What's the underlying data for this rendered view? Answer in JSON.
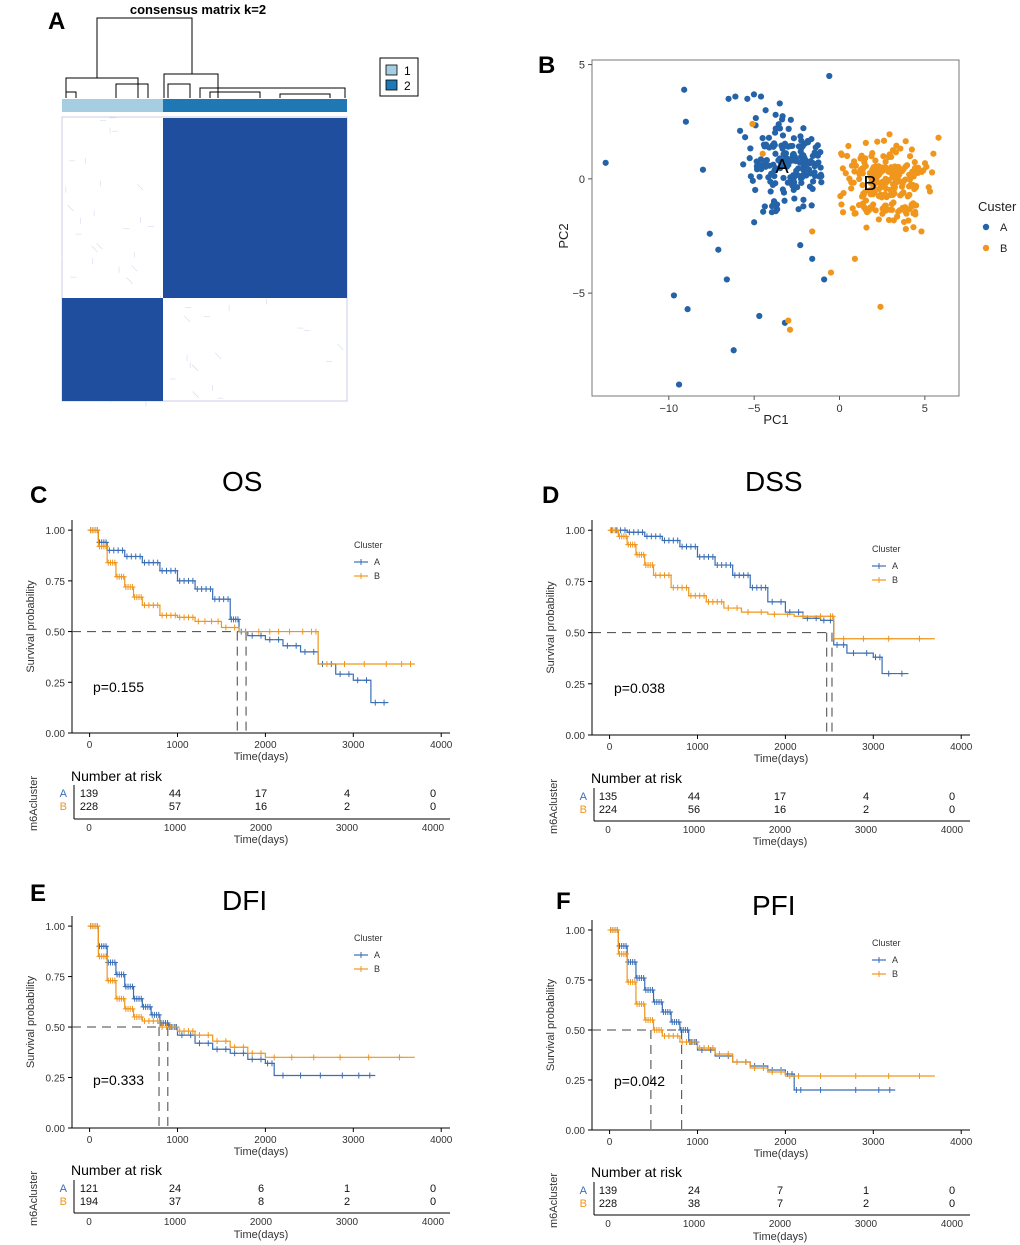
{
  "panels": {
    "a": {
      "letter": "A",
      "title": "consensus matrix k=2",
      "legend": [
        "1",
        "2"
      ],
      "colors": {
        "cluster1": "#a6cee3",
        "cluster2": "#1f78b4",
        "cell": "#1f4e9e"
      }
    },
    "b": {
      "letter": "B",
      "xlabel": "PC1",
      "ylabel": "PC2",
      "legend_title": "Custer",
      "legend": [
        "A",
        "B"
      ],
      "group_labels": [
        "A",
        "B"
      ],
      "xticks": [
        "−10",
        "−5",
        "0",
        "5"
      ],
      "yticks": [
        "5",
        "0",
        "−5"
      ]
    }
  },
  "chart_data": [
    {
      "type": "heatmap",
      "title": "consensus matrix k=2",
      "legend": [
        "1",
        "2"
      ],
      "cluster_fraction": {
        "1": 0.36,
        "2": 0.64
      },
      "blocks": [
        {
          "row": "2",
          "col": "2",
          "value": 1.0
        },
        {
          "row": "1",
          "col": "1",
          "value": 1.0
        },
        {
          "row": "1",
          "col": "2",
          "value": 0.0
        },
        {
          "row": "2",
          "col": "1",
          "value": 0.0
        }
      ]
    },
    {
      "type": "scatter",
      "xlabel": "PC1",
      "ylabel": "PC2",
      "xlim": [
        -14.5,
        7
      ],
      "ylim": [
        -9.5,
        5.2
      ],
      "legend_title": "Custer",
      "series": [
        {
          "name": "A",
          "color": "#2563a8",
          "center": [
            -3.5,
            0.3
          ],
          "points": [
            [
              -13.7,
              0.7
            ],
            [
              -9.1,
              3.9
            ],
            [
              -9.0,
              2.5
            ],
            [
              -9.7,
              -5.1
            ],
            [
              -9.4,
              -9.0
            ],
            [
              -8.9,
              -5.7
            ],
            [
              -6.2,
              -7.5
            ],
            [
              -6.5,
              3.5
            ],
            [
              -6.1,
              3.6
            ],
            [
              -5.4,
              3.5
            ],
            [
              -4.6,
              3.6
            ],
            [
              -3.5,
              3.3
            ],
            [
              -0.6,
              4.5
            ],
            [
              -7.1,
              -3.1
            ],
            [
              -6.6,
              -4.4
            ],
            [
              -4.7,
              -6.0
            ],
            [
              -3.2,
              -6.3
            ],
            [
              -0.9,
              -4.4
            ],
            [
              -7.6,
              -2.4
            ],
            [
              -2.3,
              -2.9
            ],
            [
              -1.6,
              -3.5
            ],
            [
              -8.0,
              0.4
            ],
            [
              -5.0,
              -1.9
            ]
          ]
        }
      ]
    },
    {
      "type": "scatter",
      "xlabel": "PC1",
      "ylabel": "PC2",
      "series": [
        {
          "name": "B",
          "color": "#f0961c",
          "center": [
            1.5,
            -0.2
          ],
          "points": [
            [
              -3.0,
              -6.2
            ],
            [
              -2.9,
              -6.6
            ],
            [
              2.4,
              -5.6
            ],
            [
              -0.5,
              -4.1
            ],
            [
              0.9,
              -3.5
            ],
            [
              -1.6,
              -2.3
            ],
            [
              5.8,
              1.8
            ],
            [
              5.5,
              1.1
            ],
            [
              -4.5,
              1.1
            ],
            [
              -5.1,
              2.4
            ],
            [
              4.8,
              -2.3
            ],
            [
              2.9,
              -1.8
            ]
          ]
        }
      ]
    },
    {
      "type": "line",
      "panel": "C",
      "title": "OS",
      "xlabel": "Time(days)",
      "ylabel": "Survival probability",
      "xlim": [
        -200,
        4100
      ],
      "ylim": [
        0,
        1.05
      ],
      "xticks": [
        0,
        1000,
        2000,
        3000,
        4000
      ],
      "yticks": [
        "0.00",
        "0.25",
        "0.50",
        "0.75",
        "1.00"
      ],
      "legend_title": "Cluster",
      "pvalue": "p=0.155",
      "medians": [
        1680,
        1780
      ],
      "risk_title": "Number at risk",
      "risk_ylabel": "m6Acluster",
      "risk_x": [
        0,
        1000,
        2000,
        3000,
        4000
      ],
      "series": [
        {
          "name": "A",
          "color": "#3a6eb5",
          "risk": [
            139,
            44,
            17,
            4,
            0
          ],
          "x": [
            0,
            100,
            200,
            400,
            600,
            800,
            1000,
            1200,
            1400,
            1600,
            1700,
            1800,
            2000,
            2200,
            2400,
            2600,
            2800,
            3000,
            3200,
            3400
          ],
          "y": [
            1.0,
            0.94,
            0.9,
            0.87,
            0.84,
            0.8,
            0.75,
            0.71,
            0.66,
            0.56,
            0.5,
            0.48,
            0.46,
            0.43,
            0.4,
            0.34,
            0.29,
            0.26,
            0.15,
            0.15
          ]
        },
        {
          "name": "B",
          "color": "#f0961c",
          "risk": [
            228,
            57,
            16,
            2,
            0
          ],
          "x": [
            0,
            100,
            200,
            300,
            400,
            500,
            600,
            800,
            1000,
            1200,
            1500,
            1700,
            2000,
            2200,
            2500,
            2600,
            3000,
            3500,
            3700
          ],
          "y": [
            1.0,
            0.92,
            0.84,
            0.77,
            0.72,
            0.67,
            0.63,
            0.58,
            0.57,
            0.55,
            0.52,
            0.5,
            0.5,
            0.5,
            0.5,
            0.34,
            0.34,
            0.34,
            0.34
          ]
        }
      ]
    },
    {
      "type": "line",
      "panel": "D",
      "title": "DSS",
      "xlabel": "Time(days)",
      "ylabel": "Survival probability",
      "xlim": [
        -200,
        4100
      ],
      "ylim": [
        0,
        1.05
      ],
      "xticks": [
        0,
        1000,
        2000,
        3000,
        4000
      ],
      "yticks": [
        "0.00",
        "0.25",
        "0.50",
        "0.75",
        "1.00"
      ],
      "legend_title": "Cluster",
      "pvalue": "p=0.038",
      "medians": [
        2470,
        2530
      ],
      "risk_title": "Number at risk",
      "risk_ylabel": "m6Acluster",
      "risk_x": [
        0,
        1000,
        2000,
        3000,
        4000
      ],
      "series": [
        {
          "name": "A",
          "color": "#3a6eb5",
          "risk": [
            135,
            44,
            17,
            4,
            0
          ],
          "x": [
            0,
            200,
            400,
            600,
            800,
            1000,
            1200,
            1400,
            1600,
            1800,
            2000,
            2200,
            2400,
            2550,
            2700,
            3000,
            3100,
            3400
          ],
          "y": [
            1.0,
            0.99,
            0.97,
            0.95,
            0.92,
            0.87,
            0.83,
            0.78,
            0.72,
            0.65,
            0.6,
            0.57,
            0.56,
            0.44,
            0.4,
            0.38,
            0.3,
            0.3
          ]
        },
        {
          "name": "B",
          "color": "#f0961c",
          "risk": [
            224,
            56,
            16,
            2,
            0
          ],
          "x": [
            0,
            100,
            200,
            300,
            400,
            500,
            700,
            900,
            1100,
            1300,
            1500,
            1800,
            2100,
            2500,
            2550,
            3000,
            3700
          ],
          "y": [
            1.0,
            0.97,
            0.93,
            0.88,
            0.83,
            0.78,
            0.72,
            0.68,
            0.65,
            0.62,
            0.6,
            0.59,
            0.58,
            0.58,
            0.47,
            0.47,
            0.47
          ]
        }
      ]
    },
    {
      "type": "line",
      "panel": "E",
      "title": "DFI",
      "xlabel": "Time(days)",
      "ylabel": "Survival probability",
      "xlim": [
        -200,
        4100
      ],
      "ylim": [
        0,
        1.05
      ],
      "xticks": [
        0,
        1000,
        2000,
        3000,
        4000
      ],
      "yticks": [
        "0.00",
        "0.25",
        "0.50",
        "0.75",
        "1.00"
      ],
      "legend_title": "Cluster",
      "pvalue": "p=0.333",
      "medians": [
        790,
        890
      ],
      "risk_title": "Number at risk",
      "risk_ylabel": "m6Acluster",
      "risk_x": [
        0,
        1000,
        2000,
        3000,
        4000
      ],
      "series": [
        {
          "name": "A",
          "color": "#3a6eb5",
          "risk": [
            121,
            24,
            6,
            1,
            0
          ],
          "x": [
            0,
            100,
            200,
            300,
            400,
            500,
            600,
            700,
            800,
            900,
            1000,
            1200,
            1400,
            1600,
            1800,
            2000,
            2100,
            2500,
            3000,
            3250
          ],
          "y": [
            1.0,
            0.9,
            0.82,
            0.76,
            0.7,
            0.64,
            0.6,
            0.56,
            0.52,
            0.5,
            0.46,
            0.42,
            0.39,
            0.37,
            0.34,
            0.32,
            0.26,
            0.26,
            0.26,
            0.26
          ]
        },
        {
          "name": "B",
          "color": "#f0961c",
          "risk": [
            194,
            37,
            8,
            2,
            0
          ],
          "x": [
            0,
            100,
            200,
            300,
            400,
            500,
            600,
            800,
            1000,
            1200,
            1400,
            1600,
            1800,
            2000,
            2400,
            3000,
            3700
          ],
          "y": [
            1.0,
            0.85,
            0.73,
            0.64,
            0.59,
            0.55,
            0.53,
            0.5,
            0.48,
            0.46,
            0.43,
            0.4,
            0.37,
            0.35,
            0.35,
            0.35,
            0.35
          ]
        }
      ]
    },
    {
      "type": "line",
      "panel": "F",
      "title": "PFI",
      "xlabel": "Time(days)",
      "ylabel": "Survival probability",
      "xlim": [
        -200,
        4100
      ],
      "ylim": [
        0,
        1.05
      ],
      "xticks": [
        0,
        1000,
        2000,
        3000,
        4000
      ],
      "yticks": [
        "0.00",
        "0.25",
        "0.50",
        "0.75",
        "1.00"
      ],
      "legend_title": "Cluster",
      "pvalue": "p=0.042",
      "medians": [
        470,
        820
      ],
      "risk_title": "Number at risk",
      "risk_ylabel": "m6Acluster",
      "risk_x": [
        0,
        1000,
        2000,
        3000,
        4000
      ],
      "series": [
        {
          "name": "A",
          "color": "#3a6eb5",
          "risk": [
            139,
            24,
            7,
            1,
            0
          ],
          "x": [
            0,
            100,
            200,
            300,
            400,
            500,
            600,
            700,
            800,
            900,
            1000,
            1200,
            1400,
            1600,
            1800,
            2000,
            2100,
            2200,
            3000,
            3250
          ],
          "y": [
            1.0,
            0.92,
            0.84,
            0.76,
            0.7,
            0.64,
            0.59,
            0.54,
            0.5,
            0.44,
            0.4,
            0.37,
            0.34,
            0.32,
            0.3,
            0.28,
            0.2,
            0.2,
            0.2,
            0.2
          ]
        },
        {
          "name": "B",
          "color": "#f0961c",
          "risk": [
            228,
            38,
            7,
            2,
            0
          ],
          "x": [
            0,
            100,
            200,
            300,
            400,
            500,
            600,
            800,
            1000,
            1200,
            1400,
            1600,
            1800,
            2000,
            2200,
            3000,
            3700
          ],
          "y": [
            1.0,
            0.88,
            0.74,
            0.63,
            0.55,
            0.5,
            0.47,
            0.44,
            0.41,
            0.38,
            0.34,
            0.31,
            0.29,
            0.27,
            0.27,
            0.27,
            0.27
          ]
        }
      ]
    }
  ]
}
